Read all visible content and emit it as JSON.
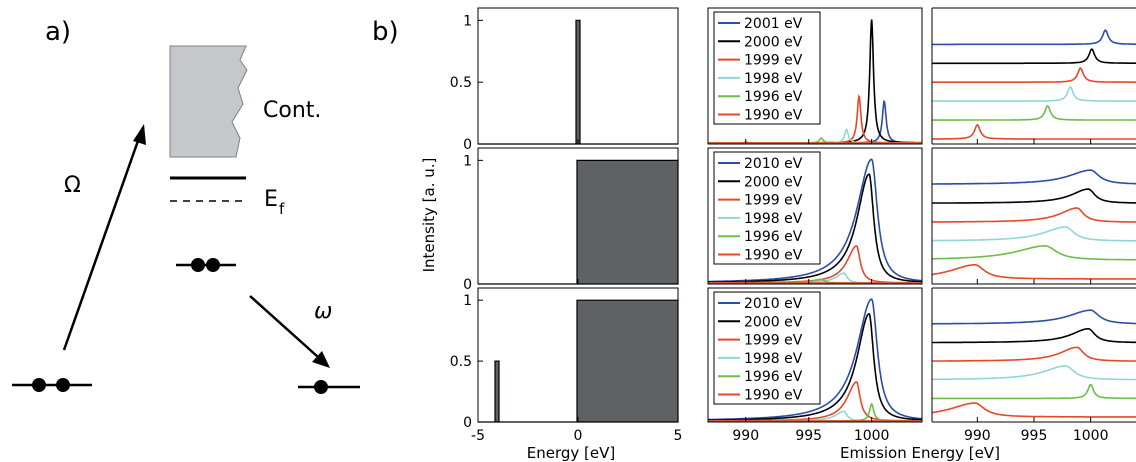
{
  "panel_a": {
    "label": "a)",
    "continuum_label": "Cont.",
    "fermi_label": "E",
    "fermi_sub": "f",
    "absorption_symbol": "Ω",
    "emission_symbol": "ω"
  },
  "panel_b": {
    "label": "b)",
    "ylabel": "Intensity [a. u.]",
    "xlabel_left": "Energy [eV]",
    "xlabel_right": "Emission Energy [eV]",
    "fill_color": "#5f6264",
    "x_ticks_left": [
      "-5",
      "0",
      "5"
    ],
    "x_ticks_mid": [
      "990",
      "995",
      "1000"
    ],
    "x_ticks_right": [
      "990",
      "995",
      "1000"
    ],
    "y_ticks_rows": [
      [
        "1",
        "0.5",
        "0"
      ],
      [
        "1",
        "0"
      ],
      [
        "1",
        "0.5",
        "0"
      ]
    ]
  },
  "chart_data": [
    {
      "type": "area",
      "panel": "row1-dos",
      "description_free": true,
      "xlim": [
        -5,
        5
      ],
      "ylim": [
        0,
        1.1
      ],
      "x": [
        -5,
        -0.1,
        -0.1,
        0.1,
        0.1,
        5
      ],
      "y": [
        0,
        0,
        1,
        1,
        0,
        0
      ]
    },
    {
      "type": "area",
      "panel": "row2-dos",
      "xlim": [
        -5,
        5
      ],
      "ylim": [
        0,
        1.1
      ],
      "x": [
        -5,
        -0.05,
        -0.05,
        5
      ],
      "y": [
        0,
        0,
        1,
        1
      ]
    },
    {
      "type": "area",
      "panel": "row3-dos",
      "xlim": [
        -5,
        5
      ],
      "ylim": [
        0,
        1.1
      ],
      "x": [
        -5,
        -4.15,
        -4.15,
        -3.95,
        -3.95,
        -0.05,
        -0.05,
        5
      ],
      "y": [
        0,
        0,
        0.5,
        0.5,
        0,
        0,
        1,
        1
      ]
    },
    {
      "type": "line",
      "panel": "row1-spectra",
      "xlim": [
        987,
        1004
      ],
      "ylim": [
        0,
        1.1
      ],
      "series": [
        {
          "name": "2001 eV",
          "color": "#2a4fa8",
          "peak": 1001,
          "height": 0.34,
          "width": 0.18,
          "tail": 0
        },
        {
          "name": "2000 eV",
          "color": "#000000",
          "peak": 1000,
          "height": 1.0,
          "width": 0.18,
          "tail": 0
        },
        {
          "name": "1999 eV",
          "color": "#e8472a",
          "peak": 999,
          "height": 0.38,
          "width": 0.18,
          "tail": 0
        },
        {
          "name": "1998 eV",
          "color": "#8fd6d6",
          "peak": 998,
          "height": 0.11,
          "width": 0.18,
          "tail": 0
        },
        {
          "name": "1996 eV",
          "color": "#6cbf45",
          "peak": 996,
          "height": 0.04,
          "width": 0.18,
          "tail": 0
        },
        {
          "name": "1990 eV",
          "color": "#e8472a",
          "peak": 990,
          "height": 0.006,
          "width": 0.18,
          "tail": 0
        }
      ]
    },
    {
      "type": "line",
      "panel": "row2-spectra",
      "xlim": [
        987,
        1004
      ],
      "ylim": [
        0,
        1.1
      ],
      "series": [
        {
          "name": "2010 eV",
          "color": "#2a4fa8",
          "peak": 1000,
          "height": 1.0,
          "width": 0.55,
          "tail": 1
        },
        {
          "name": "2000 eV",
          "color": "#000000",
          "peak": 999.8,
          "height": 0.88,
          "width": 0.45,
          "tail": 1
        },
        {
          "name": "1999 eV",
          "color": "#e8472a",
          "peak": 998.8,
          "height": 0.3,
          "width": 0.35,
          "tail": 1
        },
        {
          "name": "1998 eV",
          "color": "#8fd6d6",
          "peak": 997.8,
          "height": 0.08,
          "width": 0.3,
          "tail": 1
        },
        {
          "name": "1996 eV",
          "color": "#6cbf45",
          "peak": 996,
          "height": 0.03,
          "width": 0.3,
          "tail": 1
        },
        {
          "name": "1990 eV",
          "color": "#e8472a",
          "peak": 990,
          "height": 0.004,
          "width": 0.3,
          "tail": 1
        }
      ]
    },
    {
      "type": "line",
      "panel": "row3-spectra",
      "xlim": [
        987,
        1004
      ],
      "ylim": [
        0,
        1.1
      ],
      "series": [
        {
          "name": "2010 eV",
          "color": "#2a4fa8",
          "peak": 1000,
          "height": 1.0,
          "width": 0.55,
          "tail": 1
        },
        {
          "name": "2000 eV",
          "color": "#000000",
          "peak": 999.8,
          "height": 0.88,
          "width": 0.45,
          "tail": 1
        },
        {
          "name": "1999 eV",
          "color": "#e8472a",
          "peak": 998.8,
          "height": 0.32,
          "width": 0.35,
          "tail": 1
        },
        {
          "name": "1998 eV",
          "color": "#8fd6d6",
          "peak": 997.8,
          "height": 0.08,
          "width": 0.3,
          "tail": 1
        },
        {
          "name": "1996 eV",
          "color": "#6cbf45",
          "peak": 1000,
          "height": 0.14,
          "width": 0.2,
          "tail": 0
        },
        {
          "name": "1990 eV",
          "color": "#e8472a",
          "peak": 990,
          "height": 0.004,
          "width": 0.3,
          "tail": 1
        }
      ]
    },
    {
      "type": "line",
      "panel": "row1-normalized",
      "xlim": [
        986,
        1004
      ],
      "series": [
        {
          "name": "2001 eV",
          "color": "#2a4fa8",
          "peak": 1001.3,
          "width": 0.3,
          "tail": 0
        },
        {
          "name": "2000 eV",
          "color": "#000000",
          "peak": 1000.1,
          "width": 0.3,
          "tail": 0
        },
        {
          "name": "1999 eV",
          "color": "#e8472a",
          "peak": 999.1,
          "width": 0.3,
          "tail": 0
        },
        {
          "name": "1998 eV",
          "color": "#8fd6d6",
          "peak": 998.2,
          "width": 0.3,
          "tail": 0
        },
        {
          "name": "1996 eV",
          "color": "#6cbf45",
          "peak": 996.2,
          "width": 0.3,
          "tail": 0
        },
        {
          "name": "1990 eV",
          "color": "#e8472a",
          "peak": 990.0,
          "width": 0.3,
          "tail": 0
        }
      ]
    },
    {
      "type": "line",
      "panel": "row2-normalized",
      "xlim": [
        986,
        1004
      ],
      "series": [
        {
          "name": "2010 eV",
          "color": "#2a4fa8",
          "peak": 1000.0,
          "width": 0.9,
          "tail": 1
        },
        {
          "name": "2000 eV",
          "color": "#000000",
          "peak": 999.8,
          "width": 0.7,
          "tail": 1
        },
        {
          "name": "1999 eV",
          "color": "#e8472a",
          "peak": 998.8,
          "width": 0.7,
          "tail": 1
        },
        {
          "name": "1998 eV",
          "color": "#8fd6d6",
          "peak": 997.8,
          "width": 0.9,
          "tail": 1
        },
        {
          "name": "1996 eV",
          "color": "#6cbf45",
          "peak": 996.0,
          "width": 1.2,
          "tail": 1
        },
        {
          "name": "1990 eV",
          "color": "#e8472a",
          "peak": 989.8,
          "width": 1.0,
          "tail": 1
        }
      ]
    },
    {
      "type": "line",
      "panel": "row3-normalized",
      "xlim": [
        986,
        1004
      ],
      "series": [
        {
          "name": "2010 eV",
          "color": "#2a4fa8",
          "peak": 1000.0,
          "width": 0.9,
          "tail": 1
        },
        {
          "name": "2000 eV",
          "color": "#000000",
          "peak": 999.8,
          "width": 0.7,
          "tail": 1
        },
        {
          "name": "1999 eV",
          "color": "#e8472a",
          "peak": 998.8,
          "width": 0.7,
          "tail": 1
        },
        {
          "name": "1998 eV",
          "color": "#8fd6d6",
          "peak": 997.8,
          "width": 0.9,
          "tail": 1
        },
        {
          "name": "1996 eV",
          "color": "#6cbf45",
          "peak": 1000.0,
          "width": 0.3,
          "tail": 0
        },
        {
          "name": "1990 eV",
          "color": "#e8472a",
          "peak": 989.8,
          "width": 1.0,
          "tail": 1
        }
      ]
    }
  ]
}
